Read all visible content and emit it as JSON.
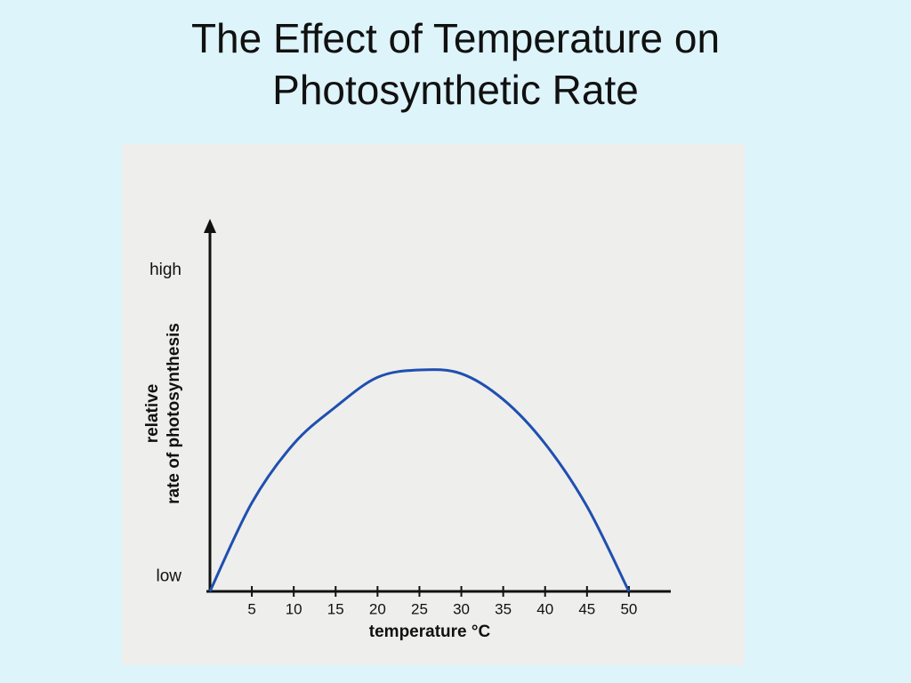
{
  "chart_data": {
    "type": "line",
    "title": "The Effect of Temperature on Photosynthetic Rate",
    "x_label": "temperature °C",
    "y_label": [
      "relative",
      "rate of photosynthesis"
    ],
    "x": [
      0,
      5,
      10,
      15,
      20,
      25,
      30,
      35,
      40,
      45,
      50
    ],
    "values": [
      0,
      24,
      40,
      50,
      58,
      60,
      59,
      52,
      40,
      23,
      0
    ],
    "color": "#1f4fb0",
    "xlim": [
      0,
      55
    ],
    "xticks": [
      5,
      10,
      15,
      20,
      25,
      30,
      35,
      40,
      45,
      50
    ],
    "ylim": [
      0,
      100
    ],
    "yticks": [
      {
        "value": 4,
        "label": "low"
      },
      {
        "value": 87,
        "label": "high"
      }
    ],
    "grid": false
  }
}
